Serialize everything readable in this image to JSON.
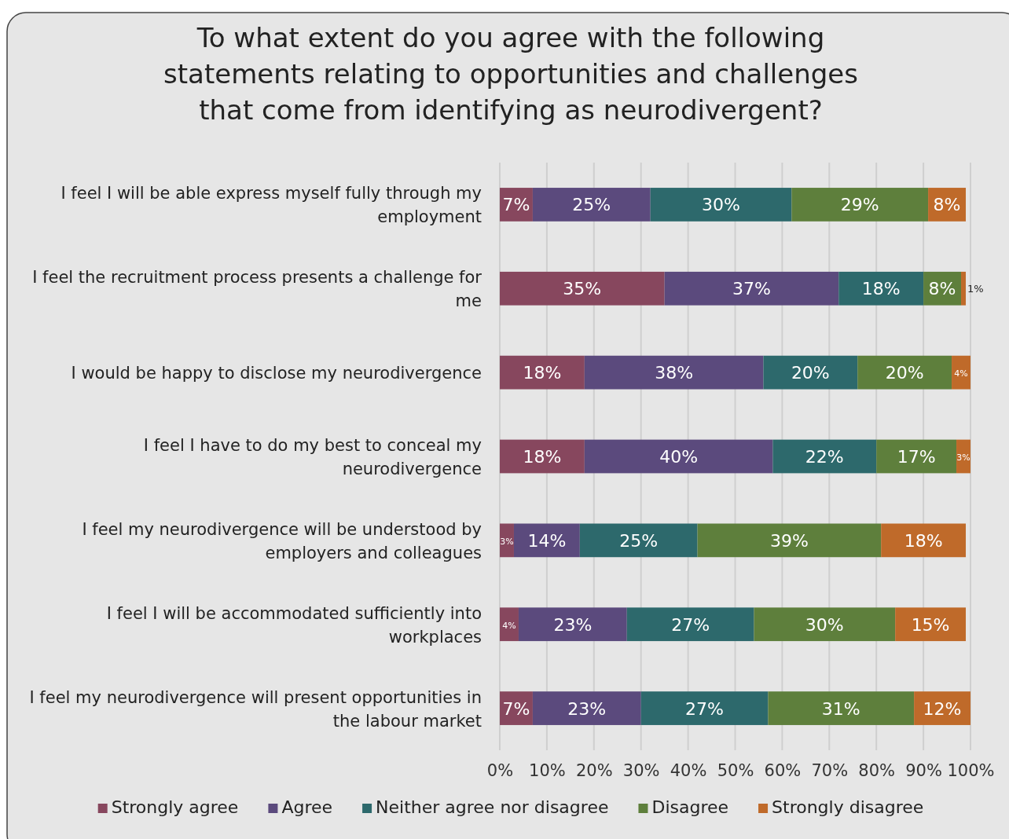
{
  "chart_data": {
    "type": "bar",
    "orientation": "horizontal",
    "stacked": true,
    "title": "To what extent do you agree with the following statements relating to opportunities and challenges that come from identifying as neurodivergent?",
    "categories": [
      "I feel I will be able express myself fully through my employment",
      "I feel the recruitment process presents a challenge for me",
      "I would be happy to disclose my neurodivergence",
      "I feel I have to do my best to conceal my neurodivergence",
      "I feel my neurodivergence will be understood by employers and colleagues",
      "I feel I will be accommodated sufficiently into workplaces",
      "I feel my neurodivergence will present opportunities in the labour market"
    ],
    "series": [
      {
        "name": "Strongly agree",
        "color": "#87475e",
        "values": [
          7,
          35,
          18,
          18,
          3,
          4,
          7
        ],
        "value_labels": [
          "7%",
          "35%",
          "18%",
          "18%",
          "3%",
          "4%",
          "7%"
        ]
      },
      {
        "name": "Agree",
        "color": "#5b4a7d",
        "values": [
          25,
          37,
          38,
          40,
          14,
          23,
          23
        ],
        "value_labels": [
          "25%",
          "37%",
          "38%",
          "40%",
          "14%",
          "23%",
          "23%"
        ]
      },
      {
        "name": "Neither agree nor disagree",
        "color": "#2d696c",
        "values": [
          30,
          18,
          20,
          22,
          25,
          27,
          27
        ],
        "value_labels": [
          "30%",
          "18%",
          "20%",
          "22%",
          "25%",
          "27%",
          "27%"
        ]
      },
      {
        "name": "Disagree",
        "color": "#5e7f3c",
        "values": [
          29,
          8,
          20,
          17,
          39,
          30,
          31
        ],
        "value_labels": [
          "29%",
          "8%",
          "20%",
          "17%",
          "39%",
          "30%",
          "31%"
        ]
      },
      {
        "name": "Strongly disagree",
        "color": "#bf6a2a",
        "values": [
          8,
          1,
          4,
          3,
          18,
          15,
          12
        ],
        "value_labels": [
          "8%",
          "1%",
          "4%",
          "3%",
          "18%",
          "15%",
          "12%"
        ]
      }
    ],
    "xlim": [
      0,
      100
    ],
    "xticks": [
      {
        "value": 0,
        "label": "0%"
      },
      {
        "value": 10,
        "label": "10%"
      },
      {
        "value": 20,
        "label": "20%"
      },
      {
        "value": 30,
        "label": "30%"
      },
      {
        "value": 40,
        "label": "40%"
      },
      {
        "value": 50,
        "label": "50%"
      },
      {
        "value": 60,
        "label": "60%"
      },
      {
        "value": 70,
        "label": "70%"
      },
      {
        "value": 80,
        "label": "80%"
      },
      {
        "value": 90,
        "label": "90%"
      },
      {
        "value": 100,
        "label": "100%"
      }
    ],
    "grid": "x",
    "legend": "bottom"
  }
}
